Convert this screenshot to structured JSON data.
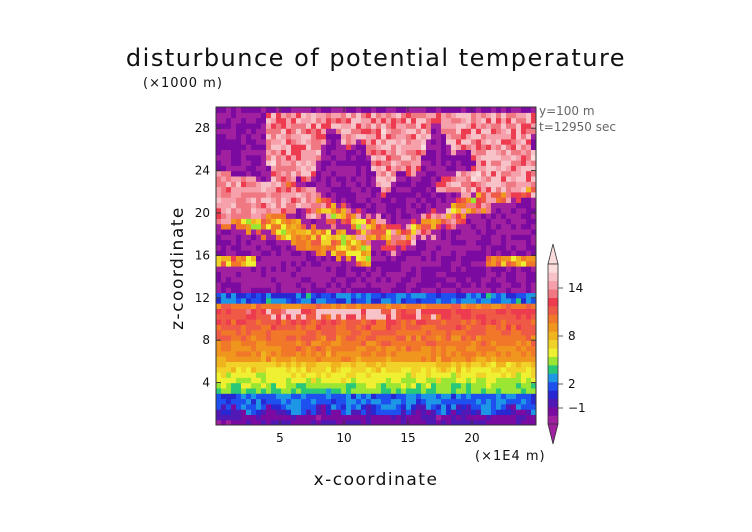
{
  "chart_data": {
    "type": "heatmap",
    "title": "disturbunce of potential temperature",
    "xlabel": "x-coordinate",
    "ylabel": "z-coordinate",
    "x_unit": "(×1E4 m)",
    "y_unit": "(×1000 m)",
    "annotations": [
      "y=100 m",
      "t=12950 sec"
    ],
    "xlim": [
      0,
      25
    ],
    "ylim": [
      0,
      30
    ],
    "x_ticks": [
      5,
      10,
      15,
      20
    ],
    "y_ticks": [
      4,
      8,
      12,
      16,
      20,
      24,
      28
    ],
    "colorbar": {
      "tick_labels": [
        "14",
        "8",
        "2",
        "−1"
      ],
      "tick_values": [
        14,
        8,
        2,
        -1
      ],
      "range": [
        -3,
        17
      ],
      "colors": [
        "#a020a0",
        "#7a0aa0",
        "#5018b4",
        "#2828d2",
        "#1e50f0",
        "#1e96e6",
        "#28c878",
        "#9be632",
        "#f0f032",
        "#f0d228",
        "#f0b41e",
        "#f0961e",
        "#f07828",
        "#ef5a46",
        "#ed3c50",
        "#f07882",
        "#f5a0aa",
        "#f8c3c8",
        "#fadcdc"
      ]
    },
    "field_description": {
      "z_0_to_1": -1,
      "z_1_to_3": 2,
      "z_3_to_6": 4,
      "z_6_to_11": 9,
      "z_11_to_12": 2,
      "z_12_to_30_background": -2,
      "upper_bands_z_16_to_29": 14
    }
  }
}
